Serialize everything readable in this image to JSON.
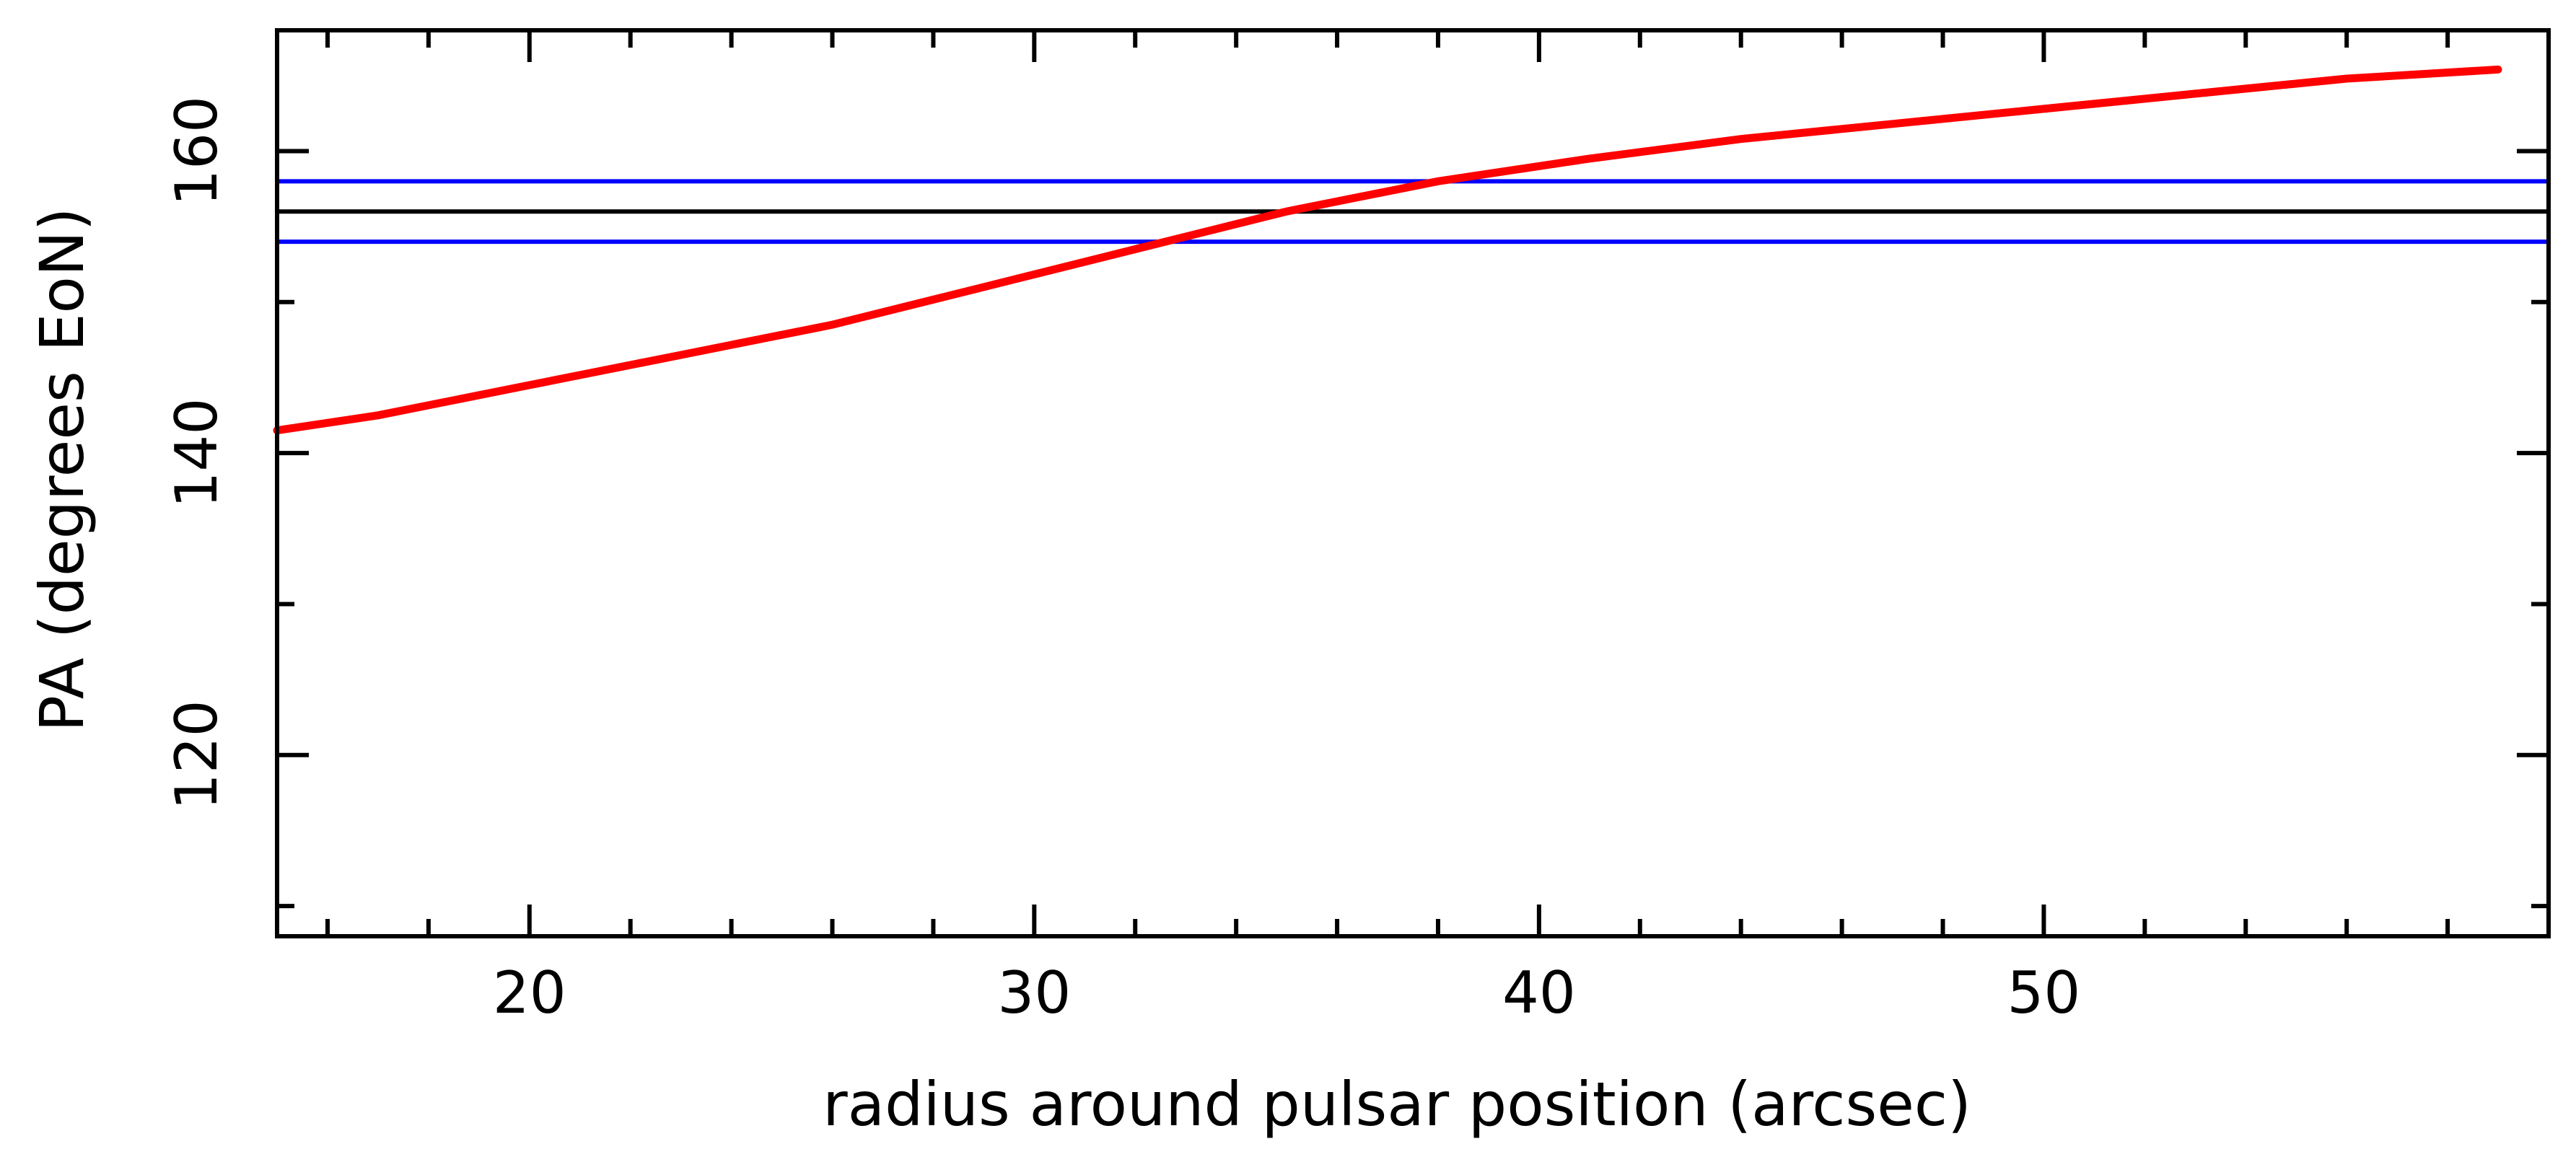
{
  "chart_data": {
    "type": "line",
    "title": "",
    "xlabel": "radius around pulsar position (arcsec)",
    "ylabel": "PA (degrees EoN)",
    "xlim": [
      15,
      60
    ],
    "ylim": [
      108,
      168
    ],
    "x_major_ticks": [
      20,
      30,
      40,
      50
    ],
    "x_minor_step": 2,
    "y_major_ticks": [
      120,
      140,
      160
    ],
    "y_minor_step": 10,
    "grid": false,
    "colors": {
      "curve": "#ff0000",
      "reference_line": "#000000",
      "bounds": "#0000ff",
      "axes": "#000000"
    },
    "horizontal_lines": [
      {
        "y": 156,
        "role": "reference",
        "color": "#000000"
      },
      {
        "y": 158,
        "role": "upper-bound",
        "color": "#0000ff"
      },
      {
        "y": 154,
        "role": "lower-bound",
        "color": "#0000ff"
      }
    ],
    "series": [
      {
        "color": "#ff0000",
        "x": [
          15,
          17,
          20,
          23,
          26,
          29,
          32,
          35,
          38,
          41,
          44,
          47,
          50,
          53,
          56,
          59
        ],
        "y": [
          141.5,
          142.5,
          144.5,
          146.5,
          148.5,
          151,
          153.5,
          156,
          158,
          159.5,
          160.8,
          161.8,
          162.8,
          163.8,
          164.8,
          165.4
        ]
      }
    ]
  }
}
